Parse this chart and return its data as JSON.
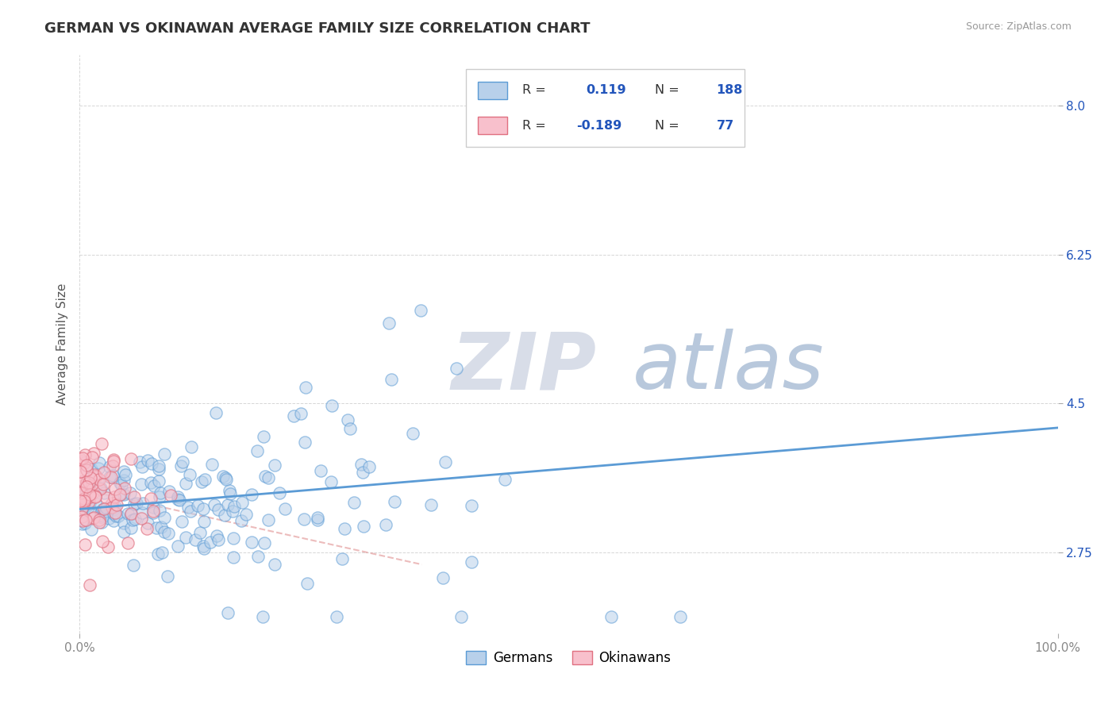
{
  "title": "GERMAN VS OKINAWAN AVERAGE FAMILY SIZE CORRELATION CHART",
  "source_text": "Source: ZipAtlas.com",
  "xlabel": "",
  "ylabel": "Average Family Size",
  "xlim": [
    0,
    1
  ],
  "ylim": [
    1.8,
    8.6
  ],
  "yticks": [
    2.75,
    4.5,
    6.25,
    8.0
  ],
  "xtick_labels": [
    "0.0%",
    "100.0%"
  ],
  "xtick_positions": [
    0,
    1
  ],
  "german_R": 0.119,
  "german_N": 188,
  "okinawan_R": -0.189,
  "okinawan_N": 77,
  "german_color": "#b8d0ea",
  "german_edge_color": "#5b9bd5",
  "okinawan_color": "#f8c0cc",
  "okinawan_edge_color": "#e07080",
  "okinawan_trend_color": "#e09090",
  "watermark_zip_color": "#d0d8e8",
  "watermark_atlas_color": "#b8c8e0",
  "title_color": "#333333",
  "title_fontsize": 13,
  "axis_label_color": "#555555",
  "tick_color": "#888888",
  "legend_text_color": "#333333",
  "legend_value_color": "#2255bb",
  "background_color": "#ffffff",
  "grid_color": "#cccccc"
}
